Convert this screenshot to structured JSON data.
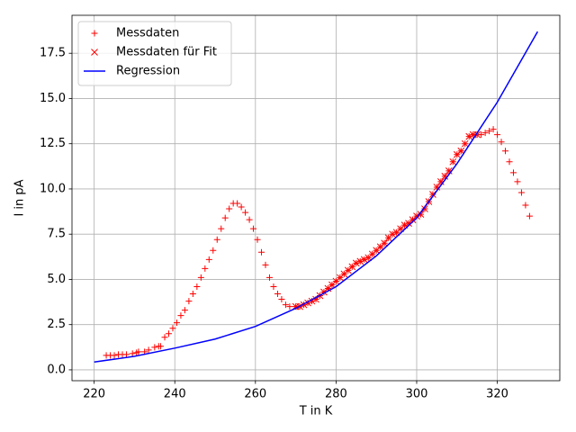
{
  "chart_data": {
    "type": "scatter",
    "xlabel": "T in K",
    "ylabel": "I in pA",
    "xlim": [
      214.5,
      335.5
    ],
    "ylim": [
      -0.6,
      19.6
    ],
    "xticks": [
      220,
      240,
      260,
      280,
      300,
      320
    ],
    "yticks": [
      {
        "value": 0,
        "label": "0.0"
      },
      2.5,
      {
        "value": 5,
        "label": "5.0"
      },
      7.5,
      {
        "value": 10,
        "label": "10.0"
      },
      12.5,
      {
        "value": 15,
        "label": "15.0"
      },
      17.5
    ],
    "grid": true,
    "legend": "upper left",
    "series": [
      {
        "name": "Messdaten",
        "color": "#ff0000",
        "marker": "+",
        "x": [
          223,
          224,
          225,
          226,
          227,
          228,
          229.5,
          230.5,
          231,
          232.5,
          233.5,
          235,
          236,
          236.5,
          237.5,
          238.5,
          239.5,
          240.5,
          241.5,
          242.5,
          243.5,
          244.5,
          245.5,
          246.5,
          247.5,
          248.5,
          249.5,
          250.5,
          251.5,
          252.5,
          253.5,
          254.5,
          255.5,
          256.5,
          257.5,
          258.5,
          259.5,
          260.5,
          261.5,
          262.5,
          263.5,
          264.5,
          265.5,
          266.5,
          267.5,
          268.5,
          270,
          271,
          272,
          273,
          274,
          275,
          276,
          277,
          278,
          279,
          280,
          281,
          282,
          283,
          284,
          285,
          286,
          287,
          288,
          289,
          290,
          291,
          292,
          293,
          294,
          295,
          296,
          297,
          298,
          299,
          300,
          301,
          302,
          303,
          304,
          305,
          306,
          307,
          308,
          309,
          310,
          311,
          312,
          313,
          314,
          315,
          316,
          317,
          318,
          319,
          320,
          321,
          322,
          323,
          324,
          325,
          326,
          327,
          328
        ],
        "values": [
          0.8,
          0.8,
          0.8,
          0.85,
          0.85,
          0.85,
          0.9,
          0.95,
          1.0,
          1.0,
          1.1,
          1.25,
          1.3,
          1.3,
          1.8,
          2.0,
          2.3,
          2.6,
          3.0,
          3.3,
          3.8,
          4.2,
          4.6,
          5.1,
          5.6,
          6.1,
          6.6,
          7.2,
          7.8,
          8.4,
          8.9,
          9.2,
          9.2,
          9.0,
          8.7,
          8.3,
          7.8,
          7.2,
          6.5,
          5.8,
          5.1,
          4.6,
          4.2,
          3.9,
          3.6,
          3.5,
          3.5,
          3.5,
          3.6,
          3.7,
          3.8,
          3.9,
          4.1,
          4.3,
          4.5,
          4.7,
          4.9,
          5.1,
          5.3,
          5.5,
          5.7,
          5.9,
          6.0,
          6.1,
          6.2,
          6.4,
          6.6,
          6.8,
          7.0,
          7.3,
          7.5,
          7.6,
          7.8,
          8.0,
          8.1,
          8.3,
          8.5,
          8.6,
          8.9,
          9.3,
          9.7,
          10.1,
          10.4,
          10.7,
          11.0,
          11.5,
          11.9,
          12.1,
          12.5,
          12.9,
          13.0,
          13.0,
          13.0,
          13.1,
          13.2,
          13.3,
          13.0,
          12.6,
          12.1,
          11.5,
          10.9,
          10.4,
          9.8,
          9.1,
          8.5
        ]
      },
      {
        "name": "Messdaten für Fit",
        "color": "#ff0000",
        "marker": "x",
        "x": [
          270,
          271,
          272,
          273,
          274,
          275,
          276,
          277,
          278,
          279,
          280,
          281,
          282,
          283,
          284,
          285,
          286,
          287,
          288,
          289,
          290,
          291,
          292,
          293,
          294,
          295,
          296,
          297,
          298,
          299,
          300,
          301,
          302,
          303,
          304,
          305,
          306,
          307,
          308,
          309,
          310,
          311,
          312,
          313,
          314,
          315
        ],
        "values": [
          3.5,
          3.5,
          3.6,
          3.7,
          3.8,
          3.9,
          4.1,
          4.3,
          4.5,
          4.7,
          4.9,
          5.1,
          5.3,
          5.5,
          5.7,
          5.9,
          6.0,
          6.1,
          6.2,
          6.4,
          6.6,
          6.8,
          7.0,
          7.3,
          7.5,
          7.6,
          7.8,
          8.0,
          8.1,
          8.3,
          8.5,
          8.6,
          8.9,
          9.3,
          9.7,
          10.1,
          10.4,
          10.7,
          11.0,
          11.5,
          11.9,
          12.1,
          12.5,
          12.9,
          13.0,
          13.0
        ]
      },
      {
        "name": "Regression",
        "color": "#0000ff",
        "marker": "-",
        "x": [
          220,
          230,
          240,
          250,
          260,
          270,
          280,
          290,
          300,
          310,
          320,
          330
        ],
        "values": [
          0.43,
          0.75,
          1.2,
          1.7,
          2.4,
          3.4,
          4.6,
          6.3,
          8.4,
          11.4,
          14.8,
          18.7
        ]
      }
    ]
  }
}
